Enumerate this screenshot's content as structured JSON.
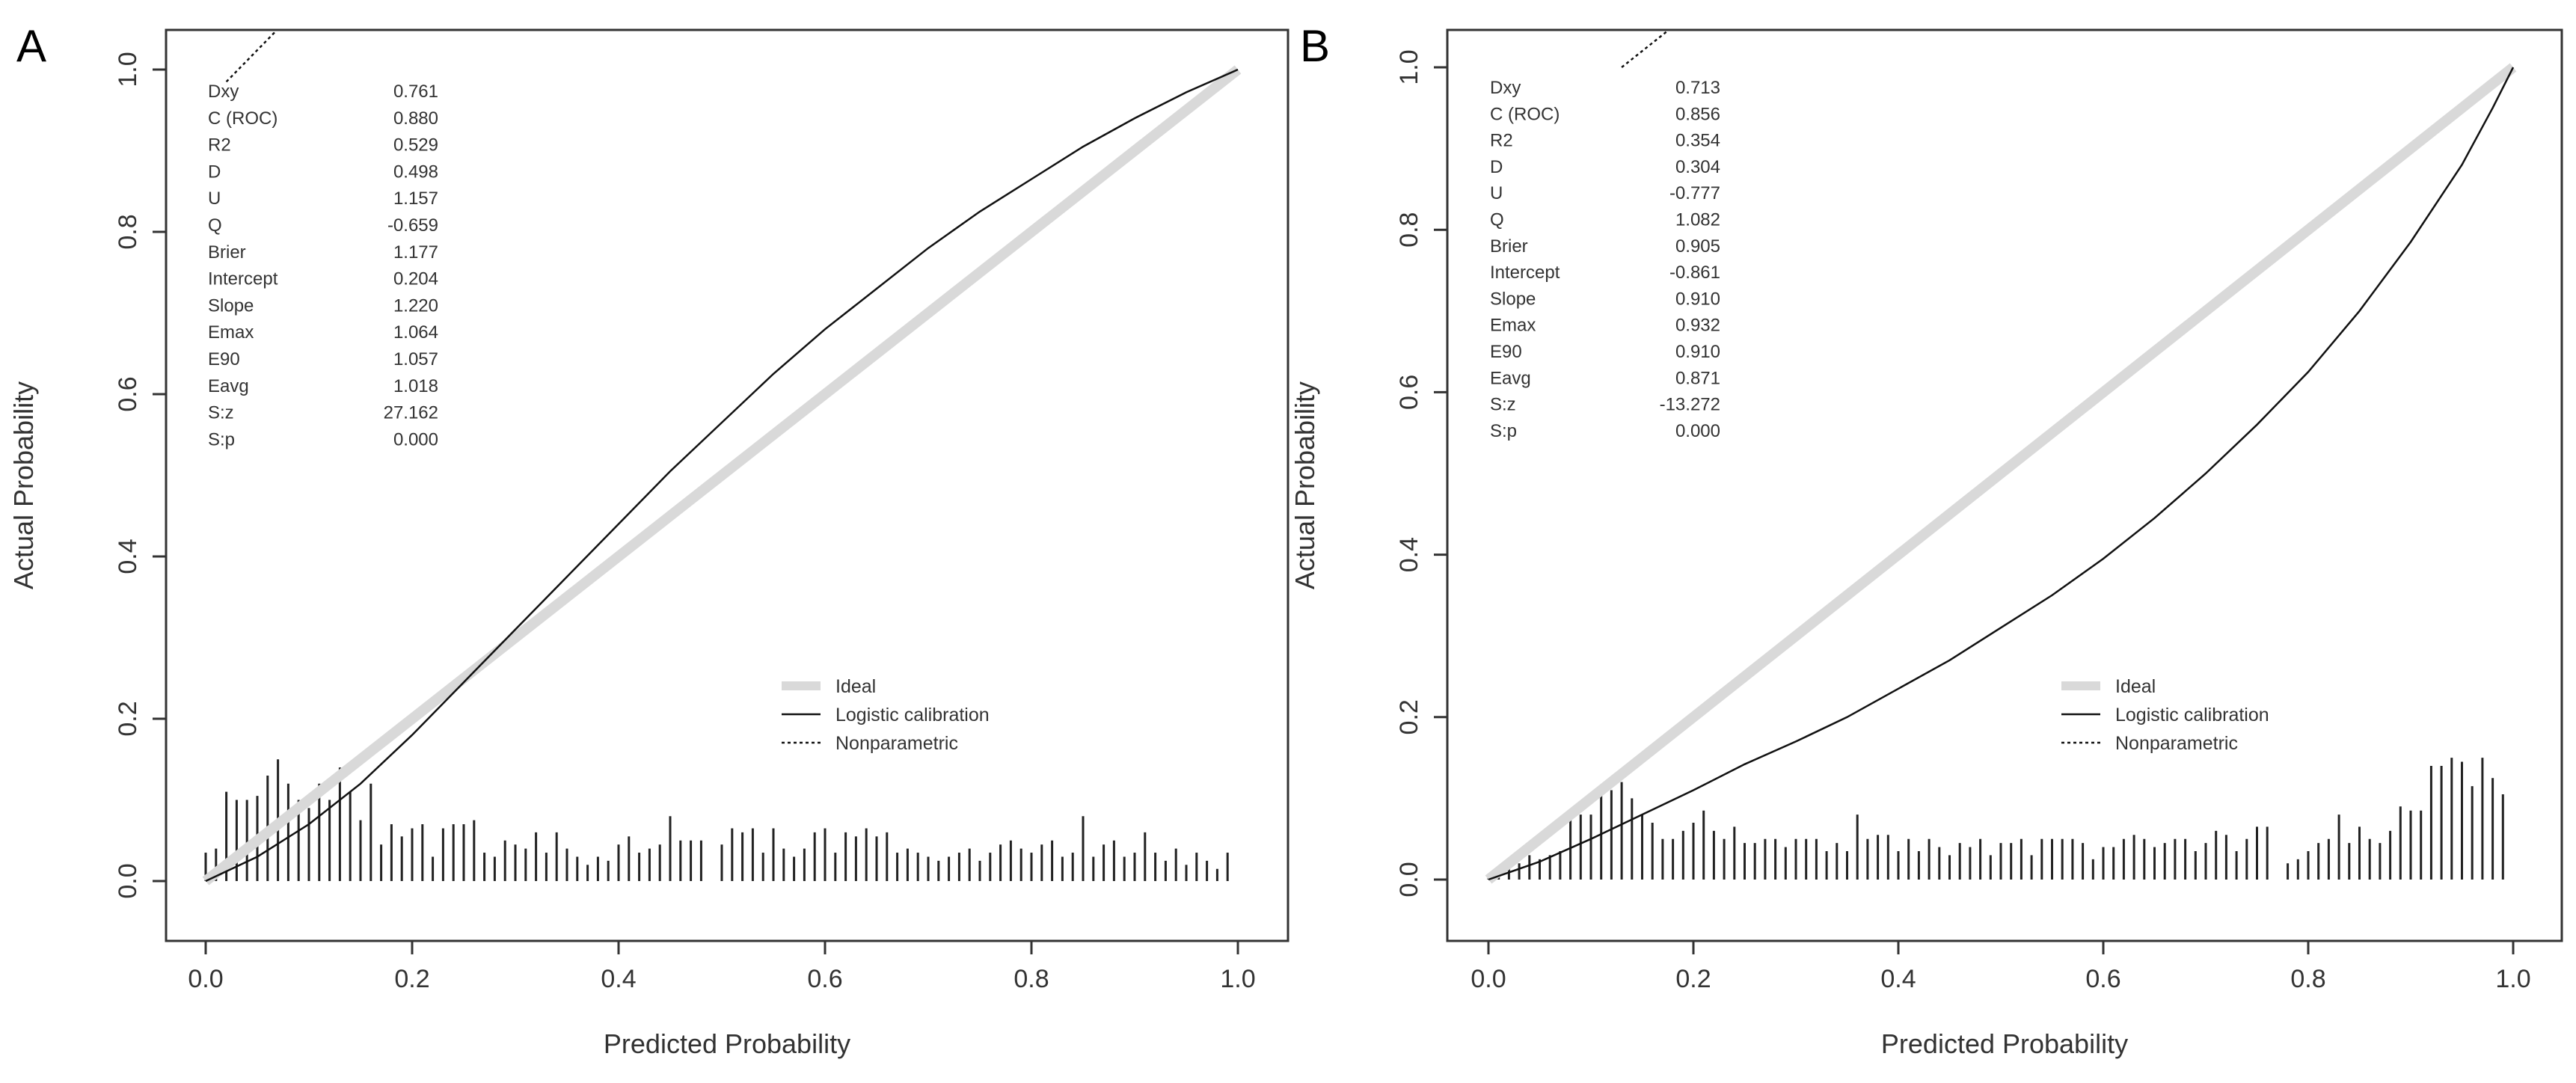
{
  "chart_data": [
    {
      "type": "line",
      "panel_label": "A",
      "xlabel": "Predicted Probability",
      "ylabel": "Actual Probability",
      "xlim": [
        0,
        1
      ],
      "ylim": [
        0,
        1
      ],
      "x_ticks": [
        "0.0",
        "0.2",
        "0.4",
        "0.6",
        "0.8",
        "1.0"
      ],
      "y_ticks": [
        "0.0",
        "0.2",
        "0.4",
        "0.6",
        "0.8",
        "1.0"
      ],
      "stats": [
        {
          "label": "Dxy",
          "value": "0.761"
        },
        {
          "label": "C (ROC)",
          "value": "0.880"
        },
        {
          "label": "R2",
          "value": "0.529"
        },
        {
          "label": "D",
          "value": "0.498"
        },
        {
          "label": "U",
          "value": "1.157"
        },
        {
          "label": "Q",
          "value": "-0.659"
        },
        {
          "label": "Brier",
          "value": "1.177"
        },
        {
          "label": "Intercept",
          "value": "0.204"
        },
        {
          "label": "Slope",
          "value": "1.220"
        },
        {
          "label": "Emax",
          "value": "1.064"
        },
        {
          "label": "E90",
          "value": "1.057"
        },
        {
          "label": "Eavg",
          "value": "1.018"
        },
        {
          "label": "S:z",
          "value": "27.162"
        },
        {
          "label": "S:p",
          "value": "0.000"
        }
      ],
      "legend": {
        "items": [
          "Ideal",
          "Logistic calibration",
          "Nonparametric"
        ],
        "placement": "bottom-right"
      },
      "series": [
        {
          "name": "Ideal",
          "x": [
            0,
            1
          ],
          "y": [
            0,
            1
          ]
        },
        {
          "name": "Logistic calibration",
          "x": [
            0,
            0.05,
            0.1,
            0.15,
            0.2,
            0.25,
            0.3,
            0.35,
            0.4,
            0.45,
            0.5,
            0.55,
            0.6,
            0.65,
            0.7,
            0.75,
            0.8,
            0.85,
            0.9,
            0.95,
            1.0
          ],
          "y": [
            0,
            0.03,
            0.07,
            0.12,
            0.18,
            0.245,
            0.31,
            0.375,
            0.44,
            0.505,
            0.565,
            0.625,
            0.68,
            0.73,
            0.78,
            0.825,
            0.865,
            0.905,
            0.94,
            0.972,
            1.0
          ]
        },
        {
          "name": "Nonparametric",
          "x": [
            0.02,
            0.07
          ],
          "y": [
            0.985,
            1.05
          ]
        }
      ],
      "histogram": {
        "x": [
          0.0,
          0.01,
          0.02,
          0.03,
          0.04,
          0.05,
          0.06,
          0.07,
          0.08,
          0.09,
          0.1,
          0.11,
          0.12,
          0.13,
          0.14,
          0.15,
          0.16,
          0.17,
          0.18,
          0.19,
          0.2,
          0.21,
          0.22,
          0.23,
          0.24,
          0.25,
          0.26,
          0.27,
          0.28,
          0.29,
          0.3,
          0.31,
          0.32,
          0.33,
          0.34,
          0.35,
          0.36,
          0.37,
          0.38,
          0.39,
          0.4,
          0.41,
          0.42,
          0.43,
          0.44,
          0.45,
          0.46,
          0.47,
          0.48,
          0.5,
          0.51,
          0.52,
          0.53,
          0.54,
          0.55,
          0.56,
          0.57,
          0.58,
          0.59,
          0.6,
          0.61,
          0.62,
          0.63,
          0.64,
          0.65,
          0.66,
          0.67,
          0.68,
          0.69,
          0.7,
          0.71,
          0.72,
          0.73,
          0.74,
          0.75,
          0.76,
          0.77,
          0.78,
          0.79,
          0.8,
          0.81,
          0.82,
          0.83,
          0.84,
          0.85,
          0.86,
          0.87,
          0.88,
          0.89,
          0.9,
          0.91,
          0.92,
          0.93,
          0.94,
          0.95,
          0.96,
          0.97,
          0.98,
          0.99
        ],
        "y": [
          0.035,
          0.04,
          0.11,
          0.1,
          0.1,
          0.105,
          0.13,
          0.15,
          0.12,
          0.1,
          0.09,
          0.12,
          0.1,
          0.14,
          0.11,
          0.075,
          0.12,
          0.045,
          0.07,
          0.055,
          0.065,
          0.07,
          0.03,
          0.065,
          0.07,
          0.07,
          0.075,
          0.035,
          0.03,
          0.05,
          0.045,
          0.04,
          0.06,
          0.035,
          0.06,
          0.04,
          0.03,
          0.02,
          0.03,
          0.025,
          0.045,
          0.055,
          0.035,
          0.04,
          0.045,
          0.08,
          0.05,
          0.05,
          0.05,
          0.045,
          0.065,
          0.06,
          0.065,
          0.035,
          0.065,
          0.04,
          0.03,
          0.04,
          0.06,
          0.065,
          0.035,
          0.06,
          0.055,
          0.065,
          0.055,
          0.06,
          0.035,
          0.04,
          0.035,
          0.03,
          0.025,
          0.03,
          0.035,
          0.04,
          0.025,
          0.035,
          0.045,
          0.05,
          0.04,
          0.035,
          0.045,
          0.05,
          0.03,
          0.035,
          0.08,
          0.03,
          0.045,
          0.05,
          0.03,
          0.035,
          0.06,
          0.035,
          0.025,
          0.04,
          0.02,
          0.035,
          0.025,
          0.015,
          0.035
        ]
      }
    },
    {
      "type": "line",
      "panel_label": "B",
      "xlabel": "Predicted Probability",
      "ylabel": "Actual Probability",
      "xlim": [
        0,
        1
      ],
      "ylim": [
        0,
        1
      ],
      "x_ticks": [
        "0.0",
        "0.2",
        "0.4",
        "0.6",
        "0.8",
        "1.0"
      ],
      "y_ticks": [
        "0.0",
        "0.2",
        "0.4",
        "0.6",
        "0.8",
        "1.0"
      ],
      "stats": [
        {
          "label": "Dxy",
          "value": "0.713"
        },
        {
          "label": "C (ROC)",
          "value": "0.856"
        },
        {
          "label": "R2",
          "value": "0.354"
        },
        {
          "label": "D",
          "value": "0.304"
        },
        {
          "label": "U",
          "value": "-0.777"
        },
        {
          "label": "Q",
          "value": "1.082"
        },
        {
          "label": "Brier",
          "value": "0.905"
        },
        {
          "label": "Intercept",
          "value": "-0.861"
        },
        {
          "label": "Slope",
          "value": "0.910"
        },
        {
          "label": "Emax",
          "value": "0.932"
        },
        {
          "label": "E90",
          "value": "0.910"
        },
        {
          "label": "Eavg",
          "value": "0.871"
        },
        {
          "label": "S:z",
          "value": "-13.272"
        },
        {
          "label": "S:p",
          "value": "0.000"
        }
      ],
      "legend": {
        "items": [
          "Ideal",
          "Logistic calibration",
          "Nonparametric"
        ],
        "placement": "bottom-right"
      },
      "series": [
        {
          "name": "Ideal",
          "x": [
            0,
            1
          ],
          "y": [
            0,
            1
          ]
        },
        {
          "name": "Logistic calibration",
          "x": [
            0,
            0.05,
            0.1,
            0.15,
            0.2,
            0.25,
            0.3,
            0.35,
            0.4,
            0.45,
            0.5,
            0.55,
            0.6,
            0.65,
            0.7,
            0.75,
            0.8,
            0.85,
            0.9,
            0.95,
            0.98,
            1.0
          ],
          "y": [
            0,
            0.022,
            0.05,
            0.08,
            0.11,
            0.142,
            0.17,
            0.2,
            0.235,
            0.27,
            0.31,
            0.35,
            0.395,
            0.445,
            0.5,
            0.56,
            0.625,
            0.7,
            0.785,
            0.88,
            0.95,
            1.0
          ]
        },
        {
          "name": "Nonparametric",
          "x": [
            0.13,
            0.18
          ],
          "y": [
            1.0,
            1.05
          ]
        }
      ],
      "histogram": {
        "x": [
          0.0,
          0.01,
          0.02,
          0.03,
          0.04,
          0.05,
          0.06,
          0.07,
          0.08,
          0.09,
          0.1,
          0.11,
          0.12,
          0.13,
          0.14,
          0.15,
          0.16,
          0.17,
          0.18,
          0.19,
          0.2,
          0.21,
          0.22,
          0.23,
          0.24,
          0.25,
          0.26,
          0.27,
          0.28,
          0.29,
          0.3,
          0.31,
          0.32,
          0.33,
          0.34,
          0.35,
          0.36,
          0.37,
          0.38,
          0.39,
          0.4,
          0.41,
          0.42,
          0.43,
          0.44,
          0.45,
          0.46,
          0.47,
          0.48,
          0.49,
          0.5,
          0.51,
          0.52,
          0.53,
          0.54,
          0.55,
          0.56,
          0.57,
          0.58,
          0.59,
          0.6,
          0.61,
          0.62,
          0.63,
          0.64,
          0.65,
          0.66,
          0.67,
          0.68,
          0.69,
          0.7,
          0.71,
          0.72,
          0.73,
          0.74,
          0.75,
          0.76,
          0.78,
          0.79,
          0.8,
          0.81,
          0.82,
          0.83,
          0.84,
          0.85,
          0.86,
          0.87,
          0.88,
          0.89,
          0.9,
          0.91,
          0.92,
          0.93,
          0.94,
          0.95,
          0.96,
          0.97,
          0.98,
          0.99
        ],
        "y": [
          0.005,
          0.01,
          0.015,
          0.02,
          0.03,
          0.025,
          0.03,
          0.035,
          0.085,
          0.08,
          0.08,
          0.11,
          0.11,
          0.12,
          0.1,
          0.08,
          0.07,
          0.05,
          0.05,
          0.06,
          0.07,
          0.085,
          0.06,
          0.05,
          0.065,
          0.045,
          0.045,
          0.05,
          0.05,
          0.04,
          0.05,
          0.05,
          0.05,
          0.035,
          0.045,
          0.035,
          0.08,
          0.05,
          0.055,
          0.055,
          0.035,
          0.05,
          0.035,
          0.05,
          0.04,
          0.03,
          0.045,
          0.04,
          0.05,
          0.03,
          0.045,
          0.045,
          0.05,
          0.03,
          0.05,
          0.05,
          0.05,
          0.05,
          0.045,
          0.025,
          0.04,
          0.04,
          0.05,
          0.055,
          0.05,
          0.04,
          0.045,
          0.05,
          0.05,
          0.035,
          0.045,
          0.06,
          0.055,
          0.035,
          0.05,
          0.065,
          0.065,
          0.02,
          0.025,
          0.035,
          0.045,
          0.05,
          0.08,
          0.045,
          0.065,
          0.05,
          0.045,
          0.06,
          0.09,
          0.085,
          0.085,
          0.14,
          0.14,
          0.15,
          0.145,
          0.115,
          0.15,
          0.125,
          0.105
        ]
      }
    }
  ]
}
